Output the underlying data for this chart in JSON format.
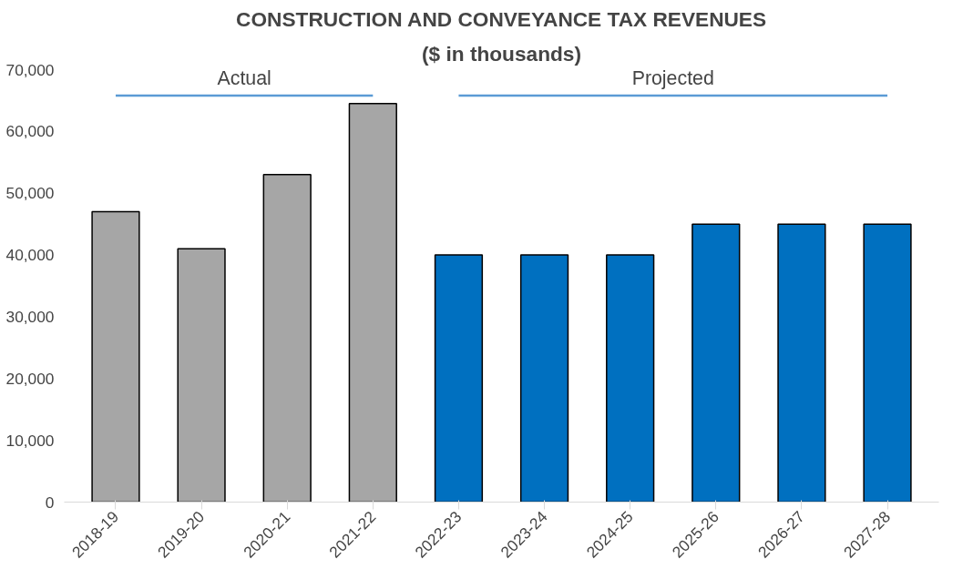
{
  "chart_data": {
    "type": "bar",
    "title": "CONSTRUCTION AND CONVEYANCE TAX REVENUES",
    "subtitle": "($ in thousands)",
    "categories": [
      "2018-19",
      "2019-20",
      "2020-21",
      "2021-22",
      "2022-23",
      "2023-24",
      "2024-25",
      "2025-26",
      "2026-27",
      "2027-28"
    ],
    "series": [
      {
        "values": [
          47000,
          41000,
          53000,
          64500,
          40000,
          40000,
          40000,
          45000,
          45000,
          45000
        ],
        "colors": [
          "#a6a6a6",
          "#a6a6a6",
          "#a6a6a6",
          "#a6a6a6",
          "#0070c0",
          "#0070c0",
          "#0070c0",
          "#0070c0",
          "#0070c0",
          "#0070c0"
        ]
      },
      {
        "type": "line",
        "name": "Actual",
        "x": [
          "2018-19",
          "2021-22"
        ],
        "values": [
          65800,
          65800
        ],
        "color": "#5b9bd5"
      },
      {
        "type": "line",
        "name": "Projected",
        "x": [
          "2022-23",
          "2027-28"
        ],
        "values": [
          65800,
          65800
        ],
        "color": "#5b9bd5"
      }
    ],
    "ylim": [
      0,
      70000
    ],
    "yticks": [
      {
        "value": 0,
        "label": "0"
      },
      {
        "value": 10000,
        "label": "10,000"
      },
      {
        "value": 20000,
        "label": "20,000"
      },
      {
        "value": 30000,
        "label": "30,000"
      },
      {
        "value": 40000,
        "label": "40,000"
      },
      {
        "value": 50000,
        "label": "50,000"
      },
      {
        "value": 60000,
        "label": "60,000"
      },
      {
        "value": 70000,
        "label": "70,000"
      }
    ],
    "marker": "none",
    "grid": false
  }
}
